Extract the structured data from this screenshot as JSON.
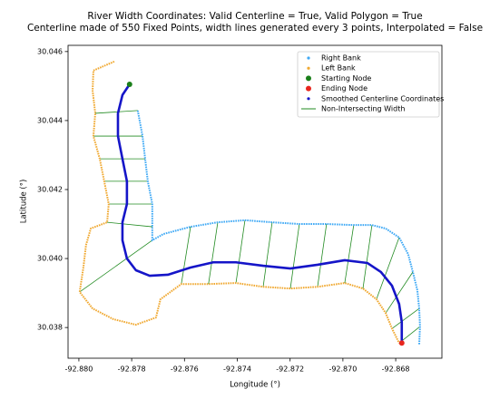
{
  "chart_data": {
    "type": "scatter",
    "title": "River Width Coordinates: Valid Centerline = True, Valid Polygon = True",
    "subtitle": "Centerline made of 550 Fixed Points, width lines generated every 3 points, Interpolated = False",
    "xlabel": "Longitude (°)",
    "ylabel": "Latitude (°)",
    "xlim": [
      -92.88041,
      -92.86625
    ],
    "ylim": [
      30.03711,
      30.04618
    ],
    "xticks": [
      {
        "value": -92.88,
        "label": "-92.880"
      },
      {
        "value": -92.878,
        "label": "-92.878"
      },
      {
        "value": -92.876,
        "label": "-92.876"
      },
      {
        "value": -92.874,
        "label": "-92.874"
      },
      {
        "value": -92.872,
        "label": "-92.872"
      },
      {
        "value": -92.87,
        "label": "-92.870"
      },
      {
        "value": -92.868,
        "label": "-92.868"
      }
    ],
    "yticks": [
      {
        "value": 30.038,
        "label": "30.038"
      },
      {
        "value": 30.04,
        "label": "30.040"
      },
      {
        "value": 30.042,
        "label": "30.042"
      },
      {
        "value": 30.044,
        "label": "30.044"
      },
      {
        "value": 30.046,
        "label": "30.046"
      }
    ],
    "legend": "upper right",
    "series": [
      {
        "name": "Right Bank",
        "color": "#3fa9f5",
        "style": "dots",
        "x": [
          -92.87777,
          -92.87759,
          -92.87749,
          -92.87739,
          -92.87722,
          -92.87722,
          -92.87722,
          -92.8768,
          -92.87577,
          -92.87474,
          -92.87371,
          -92.87268,
          -92.87165,
          -92.87062,
          -92.86959,
          -92.8689,
          -92.86838,
          -92.86787,
          -92.86753,
          -92.86735,
          -92.86718,
          -92.86711,
          -92.86708,
          -92.86711
        ],
        "y": [
          30.04429,
          30.04355,
          30.04289,
          30.04224,
          30.04158,
          30.04092,
          30.04053,
          30.04071,
          30.04092,
          30.04105,
          30.04111,
          30.04105,
          30.041,
          30.041,
          30.04097,
          30.04097,
          30.04087,
          30.04061,
          30.04013,
          30.03961,
          30.03908,
          30.03855,
          30.03803,
          30.0375
        ]
      },
      {
        "name": "Left Bank",
        "color": "#f0a830",
        "style": "dots",
        "x": [
          -92.87866,
          -92.87945,
          -92.87948,
          -92.87938,
          -92.87945,
          -92.87921,
          -92.87904,
          -92.87887,
          -92.87893,
          -92.87955,
          -92.87973,
          -92.87983,
          -92.87997,
          -92.87948,
          -92.87869,
          -92.87784,
          -92.87708,
          -92.87691,
          -92.87612,
          -92.87509,
          -92.87405,
          -92.87302,
          -92.87199,
          -92.87096,
          -92.86993,
          -92.86924,
          -92.86873,
          -92.86838,
          -92.86814,
          -92.86787
        ],
        "y": [
          30.04571,
          30.04545,
          30.04487,
          30.04421,
          30.04355,
          30.04289,
          30.04224,
          30.04158,
          30.04105,
          30.04087,
          30.04039,
          30.03974,
          30.03903,
          30.03855,
          30.03824,
          30.03808,
          30.03829,
          30.03882,
          30.03926,
          30.03926,
          30.03929,
          30.03918,
          30.03913,
          30.03918,
          30.03929,
          30.03913,
          30.03882,
          30.03842,
          30.03797,
          30.03755
        ]
      },
      {
        "name": "Starting Node",
        "color": "#1a7f1a",
        "style": "node",
        "x": [
          -92.87808
        ],
        "y": [
          30.04505
        ]
      },
      {
        "name": "Ending Node",
        "color": "#e8261e",
        "style": "node",
        "x": [
          -92.86777
        ],
        "y": [
          30.03755
        ]
      },
      {
        "name": "Smoothed Centerline Coordinates",
        "color": "#1515c8",
        "style": "thick",
        "x": [
          -92.87808,
          -92.87835,
          -92.87852,
          -92.87852,
          -92.87835,
          -92.87818,
          -92.87818,
          -92.87835,
          -92.87835,
          -92.87818,
          -92.87784,
          -92.87732,
          -92.87663,
          -92.87577,
          -92.87491,
          -92.87405,
          -92.87302,
          -92.87199,
          -92.87096,
          -92.86993,
          -92.86907,
          -92.86856,
          -92.86814,
          -92.86787,
          -92.86777,
          -92.86777
        ],
        "y": [
          30.04505,
          30.04474,
          30.04421,
          30.04355,
          30.04289,
          30.04224,
          30.04158,
          30.04105,
          30.04053,
          30.04,
          30.03966,
          30.0395,
          30.03953,
          30.03974,
          30.03989,
          30.03989,
          30.03979,
          30.03971,
          30.03982,
          30.03995,
          30.03987,
          30.03961,
          30.03921,
          30.03868,
          30.03816,
          30.03755
        ]
      },
      {
        "name": "Non-Intersecting Width",
        "color": "#228b22",
        "style": "segments",
        "x": [
          -92.87777,
          -92.87759,
          -92.87749,
          -92.87739,
          -92.87722,
          -92.87722,
          -92.87722,
          -92.87577,
          -92.87474,
          -92.87371,
          -92.87268,
          -92.87165,
          -92.87062,
          -92.86959,
          -92.8689,
          -92.86787,
          -92.86735,
          -92.86711,
          -92.86708
        ],
        "y": [
          30.04429,
          30.04355,
          30.04289,
          30.04224,
          30.04158,
          30.04092,
          30.04053,
          30.04092,
          30.04105,
          30.04111,
          30.04105,
          30.041,
          30.041,
          30.04097,
          30.04097,
          30.04061,
          30.03961,
          30.03855,
          30.03803
        ],
        "x2": [
          -92.87938,
          -92.87945,
          -92.87921,
          -92.87904,
          -92.87887,
          -92.87893,
          -92.87997,
          -92.87612,
          -92.87509,
          -92.87405,
          -92.87302,
          -92.87199,
          -92.87096,
          -92.86993,
          -92.86924,
          -92.86873,
          -92.86838,
          -92.86814,
          -92.86787
        ],
        "y2": [
          30.04421,
          30.04355,
          30.04289,
          30.04224,
          30.04158,
          30.04105,
          30.03903,
          30.03926,
          30.03926,
          30.03929,
          30.03918,
          30.03913,
          30.03918,
          30.03929,
          30.03913,
          30.03882,
          30.03842,
          30.03797,
          30.03755
        ]
      }
    ]
  }
}
